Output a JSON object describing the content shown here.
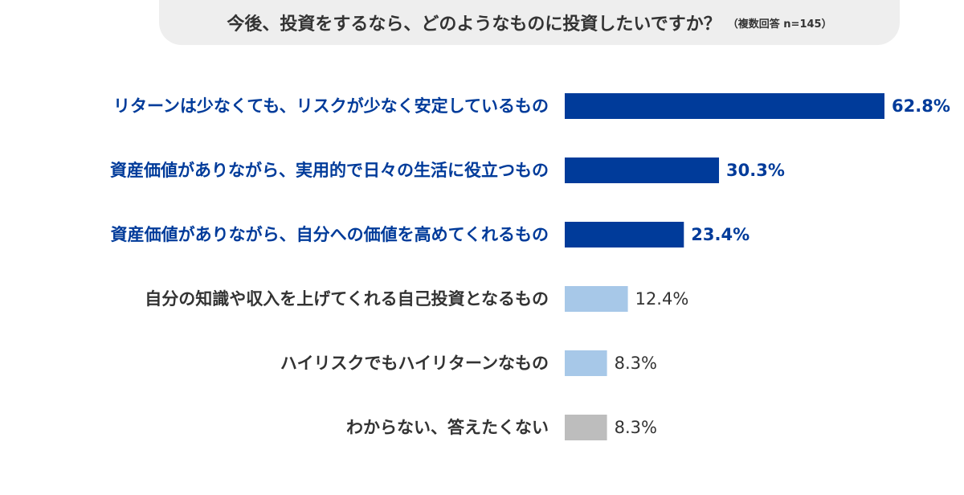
{
  "title": "今後、投資をするなら、どのようなものに投資したいですか？",
  "note": "（複数回答 n=145）",
  "chart_data": {
    "type": "bar",
    "orientation": "horizontal",
    "categories": [
      "リターンは少なくても、リスクが少なく安定しているもの",
      "資産価値がありながら、実用的で日々の生活に役立つもの",
      "資産価値がありながら、自分への価値を高めてくれるもの",
      "自分の知識や収入を上げてくれる自己投資となるもの",
      "ハイリスクでもハイリターンなもの",
      "わからない、答えたくない"
    ],
    "values": [
      62.8,
      30.3,
      23.4,
      12.4,
      8.3,
      8.3
    ],
    "value_labels": [
      "62.8%",
      "30.3%",
      "23.4%",
      "12.4%",
      "8.3%",
      "8.3%"
    ],
    "bar_colors": [
      "#003b9a",
      "#003b9a",
      "#003b9a",
      "#a7c8e8",
      "#a7c8e8",
      "#bdbdbd"
    ],
    "label_colors": [
      "#003b9a",
      "#003b9a",
      "#003b9a",
      "#333333",
      "#333333",
      "#333333"
    ],
    "value_label_colors": [
      "#003b9a",
      "#003b9a",
      "#003b9a",
      "#333333",
      "#333333",
      "#333333"
    ],
    "xlim": [
      0,
      62.8
    ]
  }
}
